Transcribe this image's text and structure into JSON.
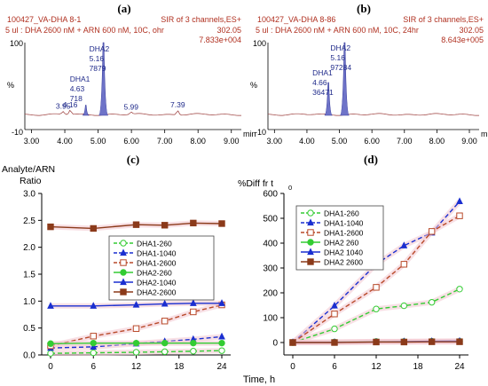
{
  "colors": {
    "chrom_header": "#b03020",
    "chrom_label": "#1f2a8a",
    "chrom_fill": "#6e73c8",
    "chrom_baseline": "#9a3a38",
    "legend_border": "#444444"
  },
  "chromatograms": [
    {
      "panel_label": "(a)",
      "sample_id": "100427_VA-DHA 8-1",
      "conditions": "5 ul : DHA 2600 nM + ARN 600 nM, 10C, ohr",
      "channel": "SIR of 3 channels,ES+",
      "mass": "302.05",
      "intensity": "7.833e+004",
      "y_top": "100",
      "y_mid": "%",
      "y_bottom": "-10",
      "x_unit": "min",
      "x_ticks": [
        "3.00",
        "4.00",
        "5.00",
        "6.00",
        "7.00",
        "8.00",
        "9.00"
      ],
      "x_range": [
        2.8,
        9.3
      ],
      "peaks": [
        {
          "name": "DHA2",
          "rt": "5.16",
          "area": "7879",
          "rt_value": 5.16,
          "height": 100,
          "width": 0.14
        },
        {
          "name": "DHA1",
          "rt": "4.63",
          "area": "718",
          "rt_value": 4.63,
          "height": 14,
          "width": 0.1
        }
      ],
      "minor_peaks": [
        {
          "rt": "3.95",
          "rt_value": 3.95,
          "height": 4
        },
        {
          "rt": "4.16",
          "rt_value": 4.16,
          "height": 6
        },
        {
          "rt": "5.99",
          "rt_value": 5.99,
          "height": 3
        },
        {
          "rt": "7.39",
          "rt_value": 7.39,
          "height": 6
        }
      ]
    },
    {
      "panel_label": "(b)",
      "sample_id": "100427_VA-DHA 8-86",
      "conditions": "5 ul : DHA 2600 nM + ARN 600 nM, 10C, 24hr",
      "channel": "SIR of 3 channels,ES+",
      "mass": "302.05",
      "intensity": "8.643e+005",
      "y_top": "100",
      "y_mid": "%",
      "y_bottom": "-10",
      "x_unit": "min",
      "x_ticks": [
        "3.00",
        "4.00",
        "5.00",
        "6.00",
        "7.00",
        "8.00",
        "9.00"
      ],
      "x_range": [
        2.8,
        9.3
      ],
      "peaks": [
        {
          "name": "DHA2",
          "rt": "5.16",
          "area": "97284",
          "rt_value": 5.16,
          "height": 100,
          "width": 0.14
        },
        {
          "name": "DHA1",
          "rt": "4.66",
          "area": "36471",
          "rt_value": 4.66,
          "height": 45,
          "width": 0.12
        }
      ],
      "minor_peaks": []
    }
  ],
  "chart_data": [
    {
      "type": "line",
      "panel_label": "(c)",
      "ylabel": "Analyte/ARN\nRatio",
      "xlabel": "Time, h",
      "x": [
        0,
        6,
        12,
        16,
        20,
        24
      ],
      "x_ticks": [
        0,
        6,
        12,
        18,
        24
      ],
      "ylim": [
        0,
        3.0
      ],
      "y_ticks": [
        "0.0",
        "0.5",
        "1.0",
        "1.5",
        "2.0",
        "2.5",
        "3.0"
      ],
      "legend_position": "center-right",
      "series": [
        {
          "name": "DHA1-260",
          "color": "#33cc33",
          "dash": "dashed",
          "marker": "circle-open",
          "values": [
            0.03,
            0.04,
            0.05,
            0.06,
            0.07,
            0.08
          ]
        },
        {
          "name": "DHA1-1040",
          "color": "#1a2fd0",
          "dash": "dashed",
          "marker": "triangle",
          "values": [
            0.13,
            0.15,
            0.21,
            0.25,
            0.29,
            0.34
          ]
        },
        {
          "name": "DHA1-2600",
          "color": "#b84a2a",
          "dash": "dashed",
          "marker": "square-open",
          "values": [
            0.17,
            0.35,
            0.49,
            0.63,
            0.8,
            0.93
          ]
        },
        {
          "name": "DHA2-260",
          "color": "#33cc33",
          "dash": "solid",
          "marker": "circle",
          "values": [
            0.21,
            0.22,
            0.22,
            0.22,
            0.22,
            0.22
          ]
        },
        {
          "name": "DHA2-1040",
          "color": "#1a2fd0",
          "dash": "solid",
          "marker": "triangle",
          "values": [
            0.91,
            0.91,
            0.93,
            0.95,
            0.96,
            0.96
          ]
        },
        {
          "name": "DHA2-2600",
          "color": "#8b3a1a",
          "dash": "solid",
          "marker": "square",
          "values": [
            2.38,
            2.35,
            2.42,
            2.41,
            2.45,
            2.44
          ]
        }
      ]
    },
    {
      "type": "line",
      "panel_label": "(d)",
      "ylabel": "%Diff fr t",
      "ylabel_sub": "0",
      "xlabel": "",
      "x": [
        0,
        6,
        12,
        16,
        20,
        24
      ],
      "x_ticks": [
        0,
        6,
        12,
        18,
        24
      ],
      "ylim": [
        -50,
        600
      ],
      "y_ticks": [
        "0",
        "100",
        "200",
        "300",
        "400",
        "500",
        "600"
      ],
      "legend_position": "top-left",
      "series": [
        {
          "name": "DHA1-260",
          "color": "#33cc33",
          "dash": "dashed",
          "marker": "circle-open",
          "values": [
            0,
            55,
            135,
            148,
            162,
            215
          ]
        },
        {
          "name": "DHA1-1040",
          "color": "#1a2fd0",
          "dash": "dashed",
          "marker": "triangle",
          "values": [
            0,
            148,
            315,
            390,
            442,
            568
          ]
        },
        {
          "name": "DHA1-2600",
          "color": "#b84a2a",
          "dash": "dashed",
          "marker": "square-open",
          "values": [
            0,
            115,
            222,
            315,
            447,
            510
          ]
        },
        {
          "name": "DHA2 260",
          "color": "#33cc33",
          "dash": "solid",
          "marker": "circle",
          "values": [
            0,
            2,
            4,
            4,
            5,
            5
          ]
        },
        {
          "name": "DHA2 1040",
          "color": "#1a2fd0",
          "dash": "solid",
          "marker": "triangle",
          "values": [
            0,
            1,
            2,
            4,
            5,
            6
          ]
        },
        {
          "name": "DHA2 2600",
          "color": "#8b3a1a",
          "dash": "solid",
          "marker": "square",
          "values": [
            0,
            0,
            2,
            2,
            3,
            3
          ]
        }
      ]
    }
  ]
}
